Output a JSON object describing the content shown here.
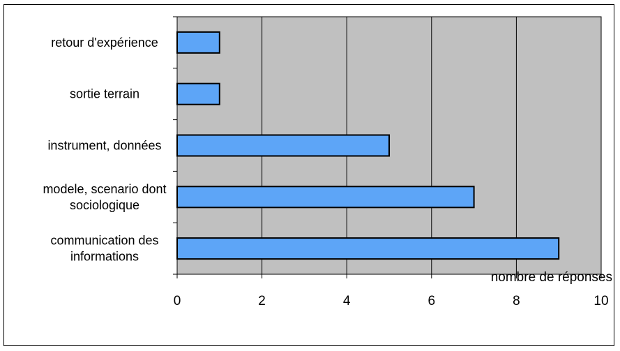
{
  "chart_data": {
    "type": "bar",
    "orientation": "horizontal",
    "categories": [
      [
        "retour d'expérience"
      ],
      [
        "sortie terrain"
      ],
      [
        "instrument, données"
      ],
      [
        "modele, scenario dont",
        "sociologique"
      ],
      [
        "communication des",
        "informations"
      ]
    ],
    "values": [
      1,
      1,
      5,
      7,
      9
    ],
    "xlabel": "nombre de réponses",
    "xlim": [
      0,
      10
    ],
    "xticks": [
      0,
      2,
      4,
      6,
      8,
      10
    ],
    "grid": "vertical",
    "legend": "none",
    "colors": {
      "bar": "#5da5f7",
      "plot_bg": "#c0c0c0",
      "gridline": "#000000"
    }
  }
}
